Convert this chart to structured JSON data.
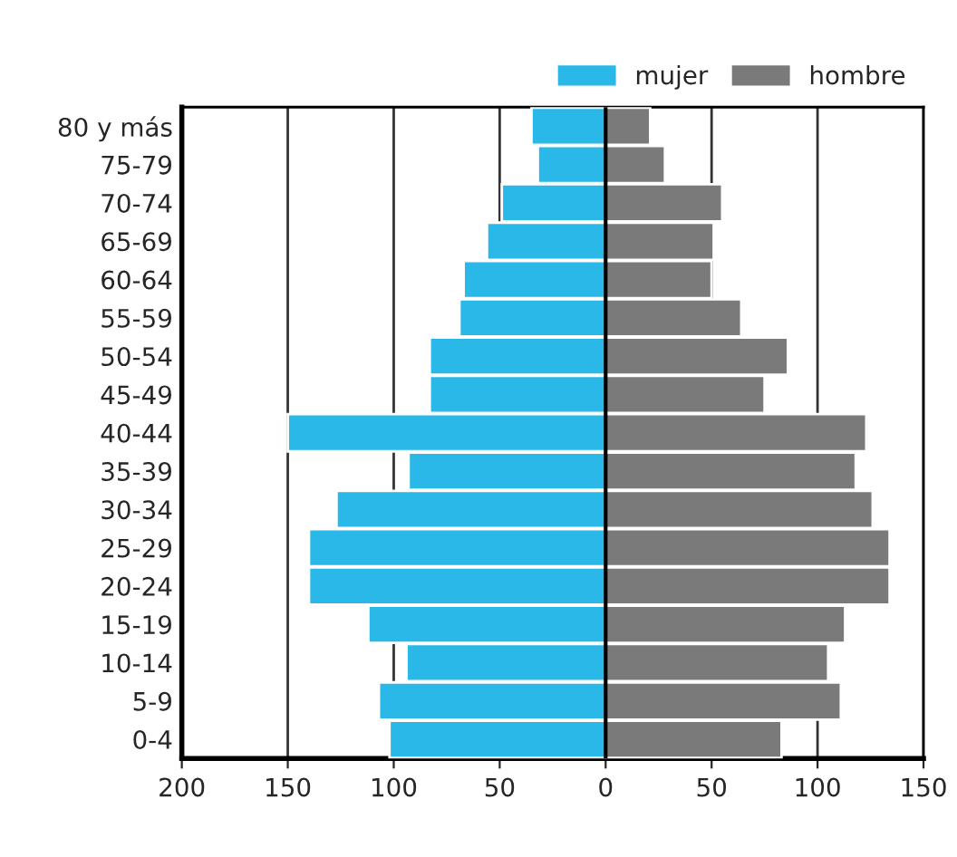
{
  "chart_data": {
    "type": "bar",
    "orientation": "horizontal",
    "categories": [
      "80 y más",
      "75-79",
      "70-74",
      "65-69",
      "60-64",
      "55-59",
      "50-54",
      "45-49",
      "40-44",
      "35-39",
      "30-34",
      "25-29",
      "20-24",
      "15-19",
      "10-14",
      "5-9",
      "0-4"
    ],
    "series": [
      {
        "name": "mujer",
        "color": "#29b8e8",
        "values": [
          -35,
          -32,
          -49,
          -56,
          -67,
          -69,
          -83,
          -83,
          -150,
          -93,
          -127,
          -140,
          -140,
          -112,
          -94,
          -107,
          -102
        ]
      },
      {
        "name": "hombre",
        "color": "#7a7a7a",
        "values": [
          21,
          28,
          55,
          51,
          50,
          64,
          86,
          75,
          123,
          118,
          126,
          134,
          134,
          113,
          105,
          111,
          83
        ]
      }
    ],
    "xlim": [
      -200,
      150
    ],
    "xticks": [
      {
        "value": -200,
        "label": "200"
      },
      {
        "value": -150,
        "label": "150"
      },
      {
        "value": -100,
        "label": "100"
      },
      {
        "value": -50,
        "label": "50"
      },
      0,
      50,
      100,
      150
    ],
    "grid": "x",
    "legend": "top right",
    "stacked": true
  }
}
